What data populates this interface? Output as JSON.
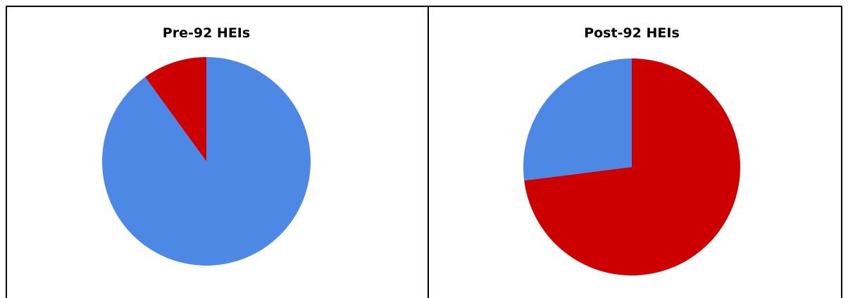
{
  "chart_data": [
    {
      "type": "pie",
      "title": "Pre-92 HEIs",
      "slices": [
        {
          "value": 90,
          "color": "#4D88E6"
        },
        {
          "value": 10,
          "color": "#CC0000"
        }
      ]
    },
    {
      "type": "pie",
      "title": "Post-92 HEIs",
      "slices": [
        {
          "value": 73,
          "color": "#CC0000"
        },
        {
          "value": 27,
          "color": "#4D88E6"
        }
      ]
    }
  ]
}
